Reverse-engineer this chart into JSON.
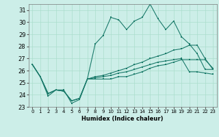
{
  "xlabel": "Humidex (Indice chaleur)",
  "ylabel": "",
  "bg_color": "#cceee8",
  "grid_color": "#aaddcc",
  "line_color": "#1a7a6a",
  "xlim": [
    -0.5,
    23.5
  ],
  "ylim": [
    23,
    31.5
  ],
  "yticks": [
    23,
    24,
    25,
    26,
    27,
    28,
    29,
    30,
    31
  ],
  "xticks": [
    0,
    1,
    2,
    3,
    4,
    5,
    6,
    7,
    8,
    9,
    10,
    11,
    12,
    13,
    14,
    15,
    16,
    17,
    18,
    19,
    20,
    21,
    22,
    23
  ],
  "series": [
    [
      26.5,
      25.5,
      23.9,
      24.4,
      24.4,
      23.3,
      23.6,
      25.3,
      28.2,
      28.9,
      30.4,
      30.2,
      29.4,
      30.1,
      30.4,
      31.5,
      30.3,
      29.4,
      30.1,
      28.8,
      28.2,
      27.4,
      26.1,
      26.1
    ],
    [
      26.5,
      25.5,
      24.1,
      24.4,
      24.3,
      23.5,
      23.7,
      25.3,
      25.3,
      25.3,
      25.3,
      25.5,
      25.5,
      25.7,
      25.9,
      26.2,
      26.4,
      26.5,
      26.7,
      26.9,
      26.9,
      26.9,
      26.9,
      26.2
    ],
    [
      26.5,
      25.5,
      24.1,
      24.4,
      24.3,
      23.5,
      23.7,
      25.3,
      25.5,
      25.6,
      25.8,
      26.0,
      26.2,
      26.5,
      26.7,
      27.0,
      27.2,
      27.4,
      27.7,
      27.8,
      28.1,
      28.1,
      27.0,
      26.1
    ],
    [
      26.5,
      25.5,
      24.1,
      24.4,
      24.3,
      23.5,
      23.7,
      25.3,
      25.4,
      25.5,
      25.6,
      25.8,
      25.9,
      26.1,
      26.3,
      26.5,
      26.7,
      26.8,
      26.9,
      27.0,
      25.9,
      25.9,
      25.8,
      25.7
    ]
  ]
}
